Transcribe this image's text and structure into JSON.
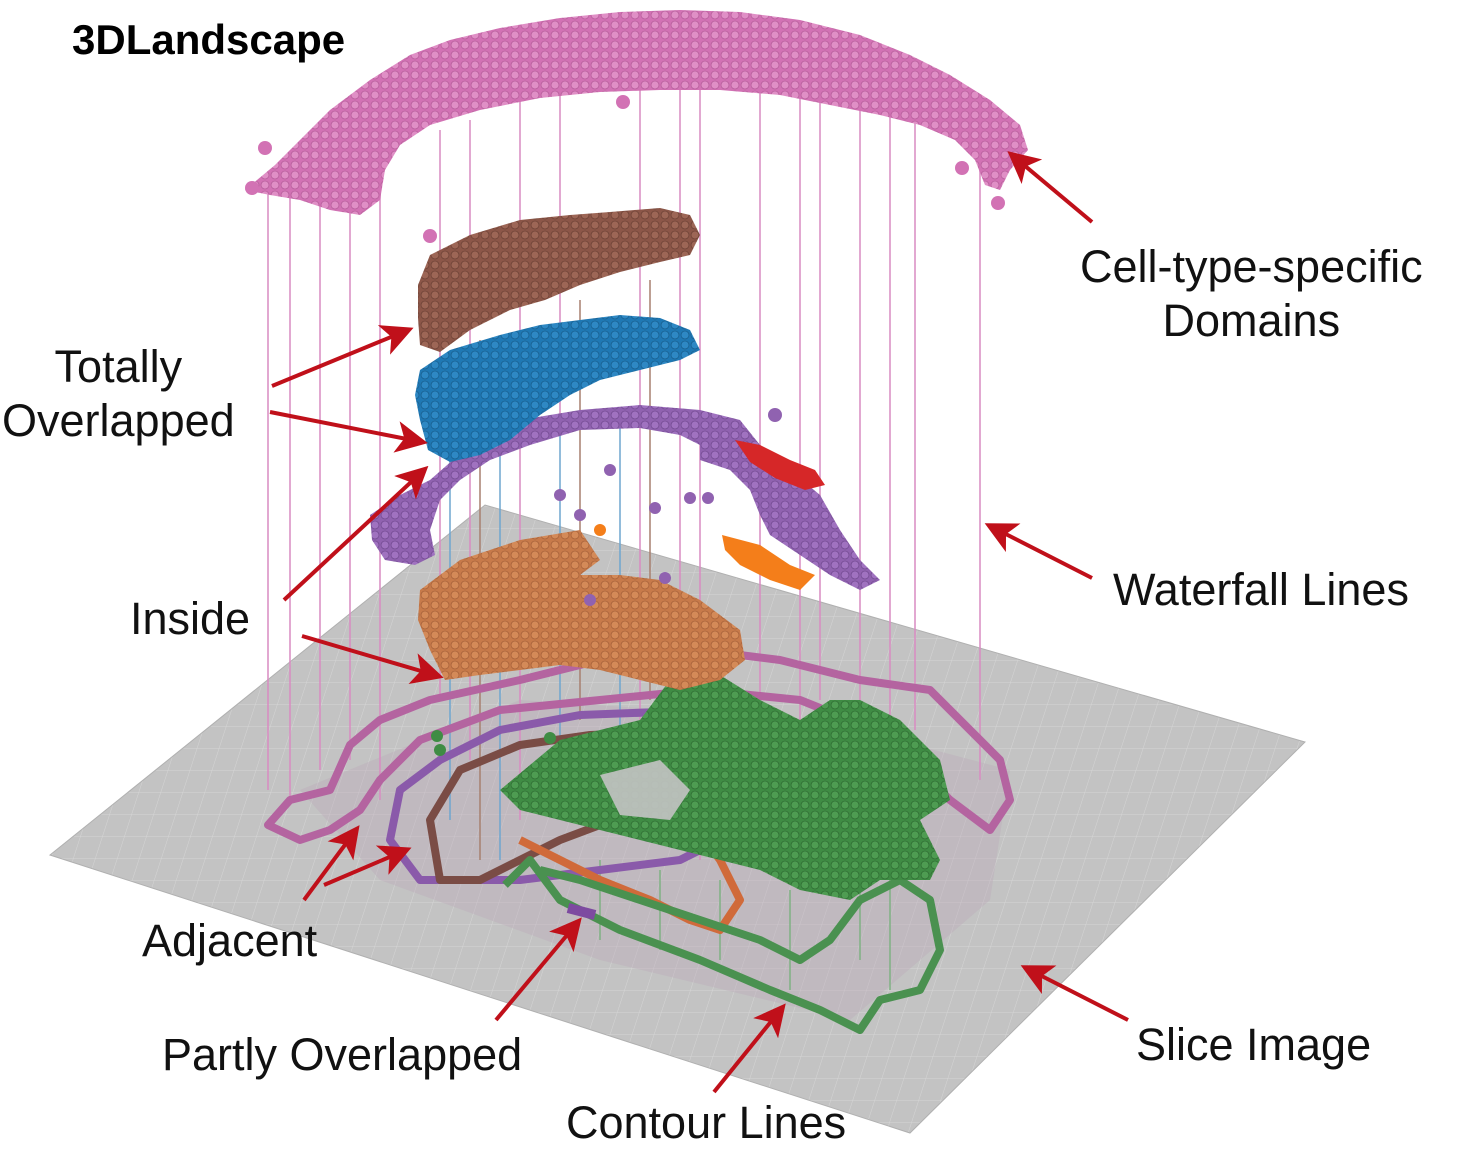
{
  "title": "3DLandscape",
  "labels": {
    "cell_type_domains": [
      "Cell-type-specific",
      "Domains"
    ],
    "totally_overlapped": [
      "Totally",
      "Overlapped"
    ],
    "inside": "Inside",
    "waterfall_lines": "Waterfall Lines",
    "adjacent": "Adjacent",
    "partly_overlapped": "Partly Overlapped",
    "contour_lines": "Contour Lines",
    "slice_image": "Slice Image"
  },
  "colors": {
    "pink": "#d272b4",
    "brown": "#8c5648",
    "blue": "#1f78b4",
    "purple": "#9062b0",
    "red": "#d62728",
    "orange": "#ff7f0e",
    "terracotta": "#c77a4a",
    "green": "#3f8c44",
    "slice": "#bdbdbd",
    "arrow": "#c0101a"
  }
}
